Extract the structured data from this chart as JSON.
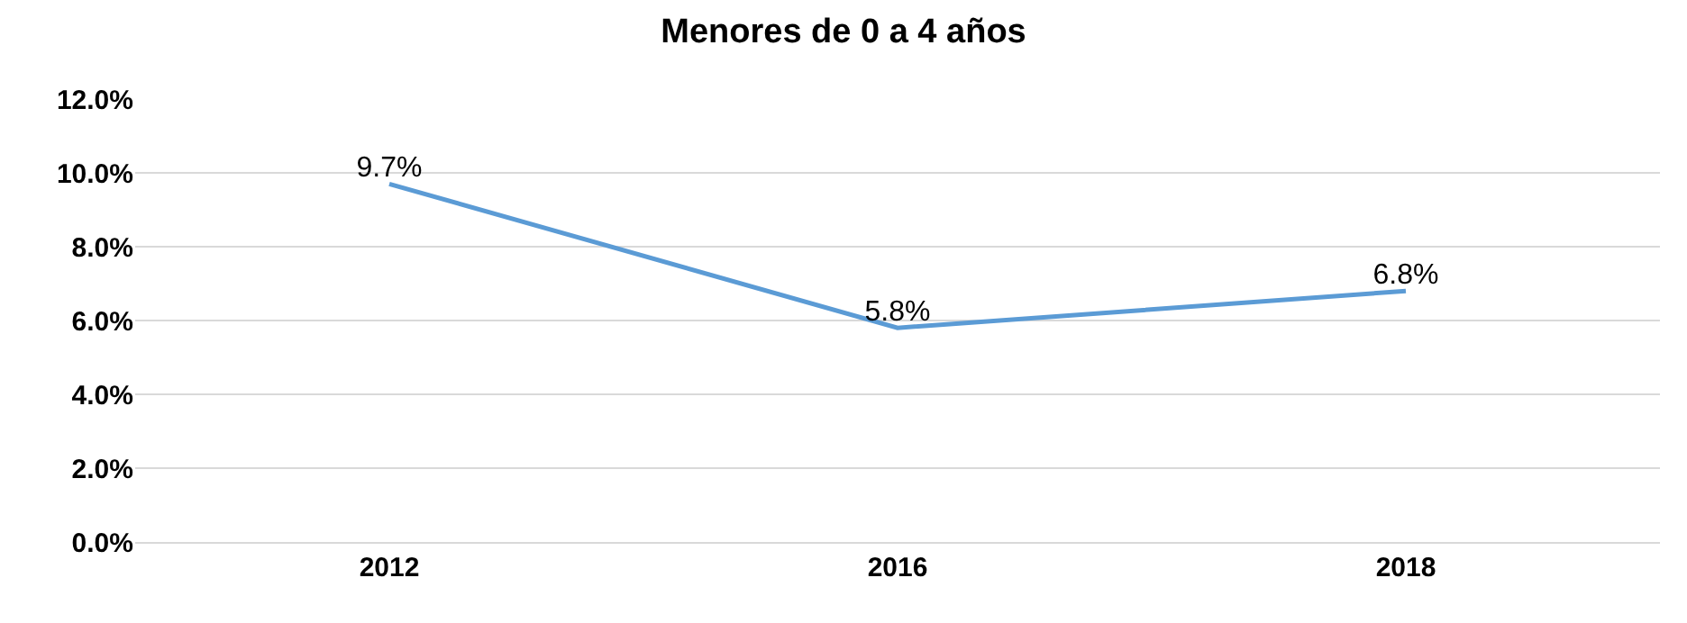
{
  "chart_data": {
    "type": "line",
    "title": "Menores de 0 a 4 años",
    "categories": [
      "2012",
      "2016",
      "2018"
    ],
    "series": [
      {
        "color": "#5b9bd5",
        "values": [
          9.7,
          5.8,
          6.8
        ],
        "value_labels": [
          "9.7%",
          "5.8%",
          "6.8%"
        ]
      }
    ],
    "ylim": [
      0,
      12
    ],
    "yticks": [
      {
        "value": 0,
        "label": "0.0%"
      },
      {
        "value": 2,
        "label": "2.0%"
      },
      {
        "value": 4,
        "label": "4.0%"
      },
      {
        "value": 6,
        "label": "6.0%"
      },
      {
        "value": 8,
        "label": "8.0%"
      },
      {
        "value": 10,
        "label": "10.0%"
      },
      {
        "value": 12,
        "label": "12.0%"
      }
    ],
    "grid": "y",
    "marker": "none",
    "line_style": "solid",
    "legend": false
  }
}
